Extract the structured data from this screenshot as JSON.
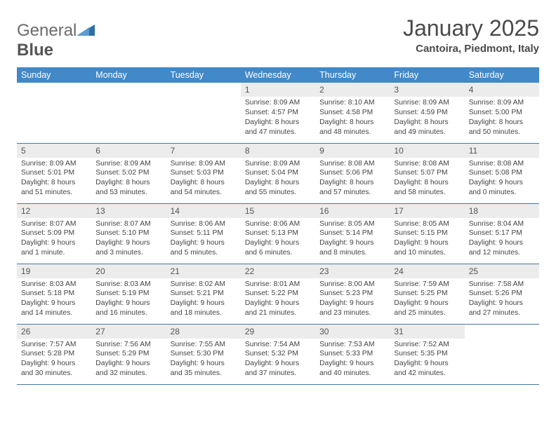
{
  "logo": {
    "part1": "General",
    "part2": "Blue"
  },
  "title": "January 2025",
  "location": "Cantoira, Piedmont, Italy",
  "colors": {
    "header_bg": "#4189c8",
    "header_text": "#ffffff",
    "daynum_bg": "#ececec",
    "cell_border": "#4178a8",
    "body_text": "#444444",
    "title_text": "#4a4a4a",
    "logo_grey": "#6b6b6b",
    "logo_accent": "#2f6fa8"
  },
  "weekdays": [
    "Sunday",
    "Monday",
    "Tuesday",
    "Wednesday",
    "Thursday",
    "Friday",
    "Saturday"
  ],
  "weeks": [
    [
      null,
      null,
      null,
      {
        "n": "1",
        "sr": "8:09 AM",
        "ss": "4:57 PM",
        "dl": "8 hours and 47 minutes."
      },
      {
        "n": "2",
        "sr": "8:10 AM",
        "ss": "4:58 PM",
        "dl": "8 hours and 48 minutes."
      },
      {
        "n": "3",
        "sr": "8:09 AM",
        "ss": "4:59 PM",
        "dl": "8 hours and 49 minutes."
      },
      {
        "n": "4",
        "sr": "8:09 AM",
        "ss": "5:00 PM",
        "dl": "8 hours and 50 minutes."
      }
    ],
    [
      {
        "n": "5",
        "sr": "8:09 AM",
        "ss": "5:01 PM",
        "dl": "8 hours and 51 minutes."
      },
      {
        "n": "6",
        "sr": "8:09 AM",
        "ss": "5:02 PM",
        "dl": "8 hours and 53 minutes."
      },
      {
        "n": "7",
        "sr": "8:09 AM",
        "ss": "5:03 PM",
        "dl": "8 hours and 54 minutes."
      },
      {
        "n": "8",
        "sr": "8:09 AM",
        "ss": "5:04 PM",
        "dl": "8 hours and 55 minutes."
      },
      {
        "n": "9",
        "sr": "8:08 AM",
        "ss": "5:06 PM",
        "dl": "8 hours and 57 minutes."
      },
      {
        "n": "10",
        "sr": "8:08 AM",
        "ss": "5:07 PM",
        "dl": "8 hours and 58 minutes."
      },
      {
        "n": "11",
        "sr": "8:08 AM",
        "ss": "5:08 PM",
        "dl": "9 hours and 0 minutes."
      }
    ],
    [
      {
        "n": "12",
        "sr": "8:07 AM",
        "ss": "5:09 PM",
        "dl": "9 hours and 1 minute."
      },
      {
        "n": "13",
        "sr": "8:07 AM",
        "ss": "5:10 PM",
        "dl": "9 hours and 3 minutes."
      },
      {
        "n": "14",
        "sr": "8:06 AM",
        "ss": "5:11 PM",
        "dl": "9 hours and 5 minutes."
      },
      {
        "n": "15",
        "sr": "8:06 AM",
        "ss": "5:13 PM",
        "dl": "9 hours and 6 minutes."
      },
      {
        "n": "16",
        "sr": "8:05 AM",
        "ss": "5:14 PM",
        "dl": "9 hours and 8 minutes."
      },
      {
        "n": "17",
        "sr": "8:05 AM",
        "ss": "5:15 PM",
        "dl": "9 hours and 10 minutes."
      },
      {
        "n": "18",
        "sr": "8:04 AM",
        "ss": "5:17 PM",
        "dl": "9 hours and 12 minutes."
      }
    ],
    [
      {
        "n": "19",
        "sr": "8:03 AM",
        "ss": "5:18 PM",
        "dl": "9 hours and 14 minutes."
      },
      {
        "n": "20",
        "sr": "8:03 AM",
        "ss": "5:19 PM",
        "dl": "9 hours and 16 minutes."
      },
      {
        "n": "21",
        "sr": "8:02 AM",
        "ss": "5:21 PM",
        "dl": "9 hours and 18 minutes."
      },
      {
        "n": "22",
        "sr": "8:01 AM",
        "ss": "5:22 PM",
        "dl": "9 hours and 21 minutes."
      },
      {
        "n": "23",
        "sr": "8:00 AM",
        "ss": "5:23 PM",
        "dl": "9 hours and 23 minutes."
      },
      {
        "n": "24",
        "sr": "7:59 AM",
        "ss": "5:25 PM",
        "dl": "9 hours and 25 minutes."
      },
      {
        "n": "25",
        "sr": "7:58 AM",
        "ss": "5:26 PM",
        "dl": "9 hours and 27 minutes."
      }
    ],
    [
      {
        "n": "26",
        "sr": "7:57 AM",
        "ss": "5:28 PM",
        "dl": "9 hours and 30 minutes."
      },
      {
        "n": "27",
        "sr": "7:56 AM",
        "ss": "5:29 PM",
        "dl": "9 hours and 32 minutes."
      },
      {
        "n": "28",
        "sr": "7:55 AM",
        "ss": "5:30 PM",
        "dl": "9 hours and 35 minutes."
      },
      {
        "n": "29",
        "sr": "7:54 AM",
        "ss": "5:32 PM",
        "dl": "9 hours and 37 minutes."
      },
      {
        "n": "30",
        "sr": "7:53 AM",
        "ss": "5:33 PM",
        "dl": "9 hours and 40 minutes."
      },
      {
        "n": "31",
        "sr": "7:52 AM",
        "ss": "5:35 PM",
        "dl": "9 hours and 42 minutes."
      },
      null
    ]
  ],
  "labels": {
    "sunrise": "Sunrise:",
    "sunset": "Sunset:",
    "daylight": "Daylight:"
  }
}
